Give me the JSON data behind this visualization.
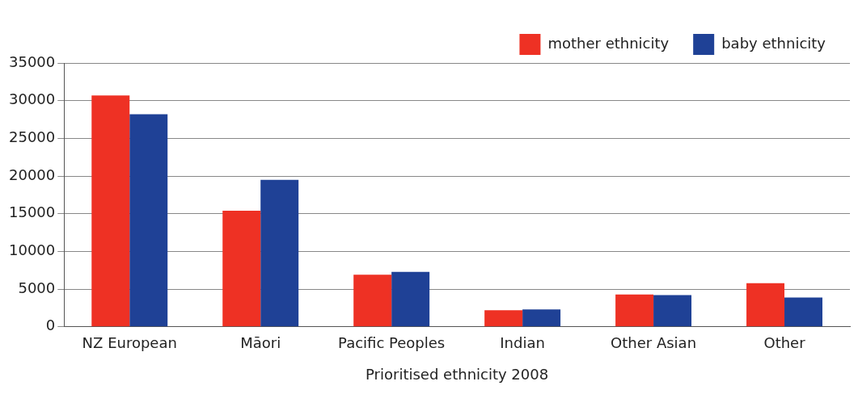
{
  "chart_data": {
    "type": "bar",
    "xlabel": "Prioritised ethnicity 2008",
    "categories": [
      "NZ European",
      "Māori",
      "Pacific Peoples",
      "Indian",
      "Other Asian",
      "Other"
    ],
    "series": [
      {
        "name": "mother ethnicity",
        "color": "#ee3124",
        "values": [
          30700,
          15400,
          6900,
          2200,
          4300,
          5800
        ]
      },
      {
        "name": "baby ethnicity",
        "color": "#1f4196",
        "values": [
          28200,
          19500,
          7300,
          2300,
          4200,
          3900
        ]
      }
    ],
    "ylim": [
      0,
      35000
    ],
    "yticks": [
      0,
      5000,
      10000,
      15000,
      20000,
      25000,
      30000,
      35000
    ],
    "grid": "y",
    "legend": "top right"
  }
}
